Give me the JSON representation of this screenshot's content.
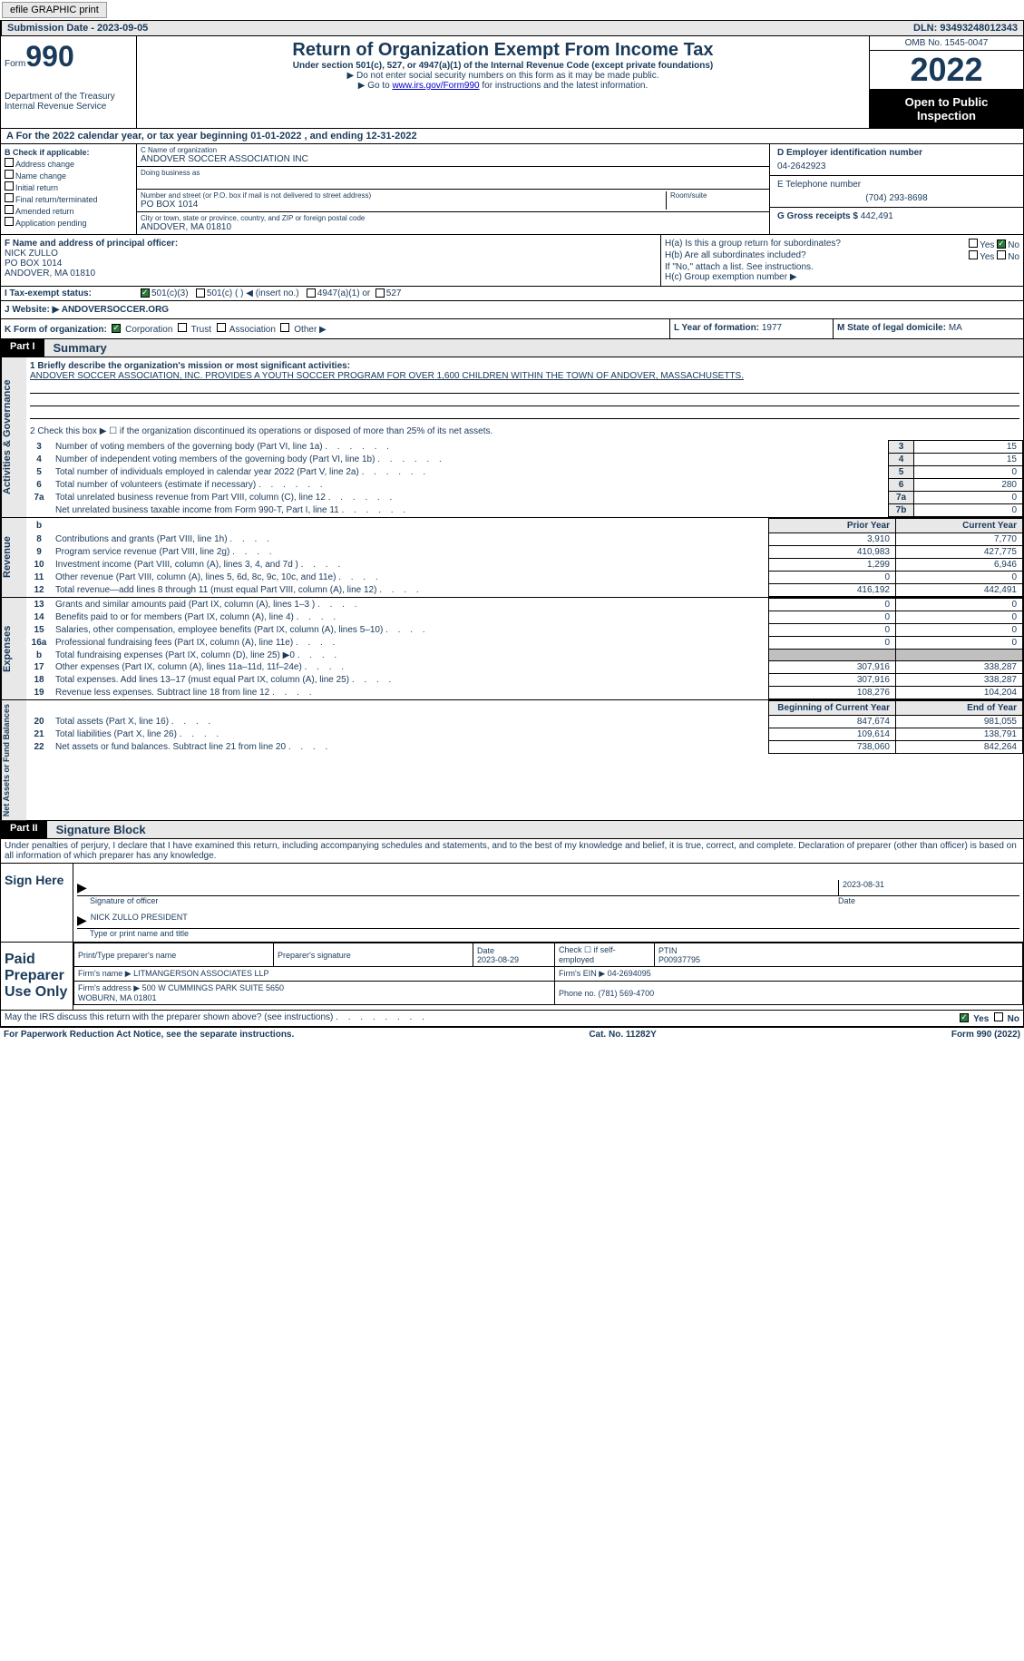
{
  "top": {
    "btn_efile": "efile GRAPHIC print",
    "sub_date_lbl": "Submission Date - ",
    "sub_date": "2023-09-05",
    "dln_lbl": "DLN: ",
    "dln": "93493248012343"
  },
  "header": {
    "form_lbl": "Form",
    "form_num": "990",
    "dept": "Department of the Treasury\nInternal Revenue Service",
    "title": "Return of Organization Exempt From Income Tax",
    "subtitle": "Under section 501(c), 527, or 4947(a)(1) of the Internal Revenue Code (except private foundations)",
    "note1": "▶ Do not enter social security numbers on this form as it may be made public.",
    "note2_pre": "▶ Go to ",
    "note2_link": "www.irs.gov/Form990",
    "note2_post": " for instructions and the latest information.",
    "omb": "OMB No. 1545-0047",
    "year": "2022",
    "otp": "Open to Public Inspection"
  },
  "rowA": "A For the 2022 calendar year, or tax year beginning 01-01-2022   , and ending 12-31-2022",
  "colB": {
    "hdr": "B Check if applicable:",
    "items": [
      "Address change",
      "Name change",
      "Initial return",
      "Final return/terminated",
      "Amended return",
      "Application pending"
    ]
  },
  "colC": {
    "name_lbl": "C Name of organization",
    "name": "ANDOVER SOCCER ASSOCIATION INC",
    "dba_lbl": "Doing business as",
    "street_lbl": "Number and street (or P.O. box if mail is not delivered to street address)",
    "room_lbl": "Room/suite",
    "street": "PO BOX 1014",
    "city_lbl": "City or town, state or province, country, and ZIP or foreign postal code",
    "city": "ANDOVER, MA  01810"
  },
  "colDE": {
    "d_lbl": "D Employer identification number",
    "d_val": "04-2642923",
    "e_lbl": "E Telephone number",
    "e_val": "(704) 293-8698",
    "g_lbl": "G Gross receipts $ ",
    "g_val": "442,491"
  },
  "rowF": {
    "lbl": "F Name and address of principal officer:",
    "name": "NICK ZULLO",
    "street": "PO BOX 1014",
    "city": "ANDOVER, MA  01810"
  },
  "rowH": {
    "ha": "H(a)  Is this a group return for subordinates?",
    "hb": "H(b)  Are all subordinates included?",
    "hb_note": "If \"No,\" attach a list. See instructions.",
    "hc": "H(c)  Group exemption number ▶",
    "yes": "Yes",
    "no": "No"
  },
  "rowI": {
    "lbl": "I   Tax-exempt status:",
    "o1": "501(c)(3)",
    "o2": "501(c) (  ) ◀ (insert no.)",
    "o3": "4947(a)(1) or",
    "o4": "527"
  },
  "rowJ": {
    "lbl": "J   Website: ▶  ",
    "val": "ANDOVERSOCCER.ORG"
  },
  "rowK": {
    "lbl": "K Form of organization:",
    "opts": [
      "Corporation",
      "Trust",
      "Association",
      "Other ▶"
    ],
    "l_lbl": "L Year of formation: ",
    "l_val": "1977",
    "m_lbl": "M State of legal domicile: ",
    "m_val": "MA"
  },
  "part1": {
    "tag": "Part I",
    "title": "Summary"
  },
  "part2": {
    "tag": "Part II",
    "title": "Signature Block"
  },
  "side": {
    "ag": "Activities & Governance",
    "rev": "Revenue",
    "exp": "Expenses",
    "nab": "Net Assets or Fund Balances"
  },
  "mission": {
    "lbl": "1   Briefly describe the organization's mission or most significant activities:",
    "text": "ANDOVER SOCCER ASSOCIATION, INC. PROVIDES A YOUTH SOCCER PROGRAM FOR OVER 1,600 CHILDREN WITHIN THE TOWN OF ANDOVER, MASSACHUSETTS."
  },
  "line2": "2   Check this box ▶ ☐ if the organization discontinued its operations or disposed of more than 25% of its net assets.",
  "govlines": [
    {
      "n": "3",
      "d": "Number of voting members of the governing body (Part VI, line 1a)",
      "b": "3",
      "v": "15"
    },
    {
      "n": "4",
      "d": "Number of independent voting members of the governing body (Part VI, line 1b)",
      "b": "4",
      "v": "15"
    },
    {
      "n": "5",
      "d": "Total number of individuals employed in calendar year 2022 (Part V, line 2a)",
      "b": "5",
      "v": "0"
    },
    {
      "n": "6",
      "d": "Total number of volunteers (estimate if necessary)",
      "b": "6",
      "v": "280"
    },
    {
      "n": "7a",
      "d": "Total unrelated business revenue from Part VIII, column (C), line 12",
      "b": "7a",
      "v": "0"
    },
    {
      "n": "",
      "d": "Net unrelated business taxable income from Form 990-T, Part I, line 11",
      "b": "7b",
      "v": "0"
    }
  ],
  "fin_hdr": {
    "py": "Prior Year",
    "cy": "Current Year",
    "bcy": "Beginning of Current Year",
    "ey": "End of Year"
  },
  "revlines": [
    {
      "n": "8",
      "d": "Contributions and grants (Part VIII, line 1h)",
      "p": "3,910",
      "c": "7,770"
    },
    {
      "n": "9",
      "d": "Program service revenue (Part VIII, line 2g)",
      "p": "410,983",
      "c": "427,775"
    },
    {
      "n": "10",
      "d": "Investment income (Part VIII, column (A), lines 3, 4, and 7d )",
      "p": "1,299",
      "c": "6,946"
    },
    {
      "n": "11",
      "d": "Other revenue (Part VIII, column (A), lines 5, 6d, 8c, 9c, 10c, and 11e)",
      "p": "0",
      "c": "0"
    },
    {
      "n": "12",
      "d": "Total revenue—add lines 8 through 11 (must equal Part VIII, column (A), line 12)",
      "p": "416,192",
      "c": "442,491"
    }
  ],
  "explines": [
    {
      "n": "13",
      "d": "Grants and similar amounts paid (Part IX, column (A), lines 1–3 )",
      "p": "0",
      "c": "0"
    },
    {
      "n": "14",
      "d": "Benefits paid to or for members (Part IX, column (A), line 4)",
      "p": "0",
      "c": "0"
    },
    {
      "n": "15",
      "d": "Salaries, other compensation, employee benefits (Part IX, column (A), lines 5–10)",
      "p": "0",
      "c": "0"
    },
    {
      "n": "16a",
      "d": "Professional fundraising fees (Part IX, column (A), line 11e)",
      "p": "0",
      "c": "0"
    },
    {
      "n": "b",
      "d": "Total fundraising expenses (Part IX, column (D), line 25) ▶0",
      "p": "",
      "c": "",
      "grey": true
    },
    {
      "n": "17",
      "d": "Other expenses (Part IX, column (A), lines 11a–11d, 11f–24e)",
      "p": "307,916",
      "c": "338,287"
    },
    {
      "n": "18",
      "d": "Total expenses. Add lines 13–17 (must equal Part IX, column (A), line 25)",
      "p": "307,916",
      "c": "338,287"
    },
    {
      "n": "19",
      "d": "Revenue less expenses. Subtract line 18 from line 12",
      "p": "108,276",
      "c": "104,204"
    }
  ],
  "nablines": [
    {
      "n": "20",
      "d": "Total assets (Part X, line 16)",
      "p": "847,674",
      "c": "981,055"
    },
    {
      "n": "21",
      "d": "Total liabilities (Part X, line 26)",
      "p": "109,614",
      "c": "138,791"
    },
    {
      "n": "22",
      "d": "Net assets or fund balances. Subtract line 21 from line 20",
      "p": "738,060",
      "c": "842,264"
    }
  ],
  "sig": {
    "perjury": "Under penalties of perjury, I declare that I have examined this return, including accompanying schedules and statements, and to the best of my knowledge and belief, it is true, correct, and complete. Declaration of preparer (other than officer) is based on all information of which preparer has any knowledge.",
    "sign_here": "Sign Here",
    "sig_of": "Signature of officer",
    "date1": "2023-08-31",
    "date_lbl": "Date",
    "officer": "NICK ZULLO  PRESIDENT",
    "type_name": "Type or print name and title",
    "paid": "Paid Preparer Use Only",
    "p_name_lbl": "Print/Type preparer's name",
    "p_sig_lbl": "Preparer's signature",
    "p_date_lbl": "Date",
    "p_date": "2023-08-29",
    "check_se": "Check ☐ if self-employed",
    "ptin_lbl": "PTIN",
    "ptin": "P00937795",
    "firm_name_lbl": "Firm's name   ▶",
    "firm_name": "LITMANGERSON ASSOCIATES LLP",
    "firm_ein_lbl": "Firm's EIN ▶",
    "firm_ein": "04-2694095",
    "firm_addr_lbl": "Firm's address ▶",
    "firm_addr": "500 W CUMMINGS PARK SUITE 5650\nWOBURN, MA  01801",
    "phone_lbl": "Phone no. ",
    "phone": "(781) 569-4700"
  },
  "footer": {
    "discuss": "May the IRS discuss this return with the preparer shown above? (see instructions)",
    "paperwork": "For Paperwork Reduction Act Notice, see the separate instructions.",
    "cat": "Cat. No. 11282Y",
    "form": "Form 990 (2022)"
  }
}
